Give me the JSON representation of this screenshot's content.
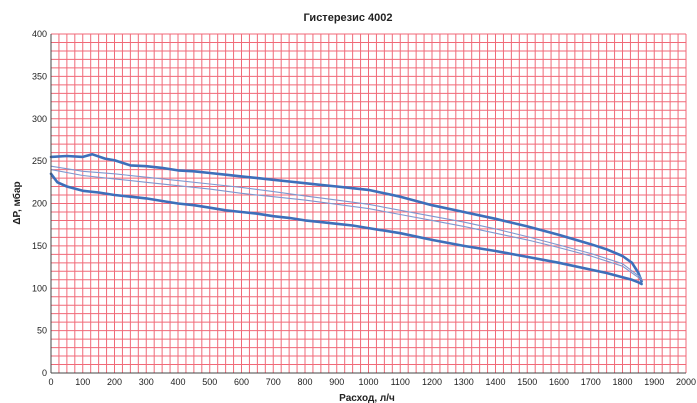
{
  "chart_data": {
    "type": "line",
    "title": "Гистерезис 4002",
    "xlabel": "Расход, л/ч",
    "ylabel": "ΔP, мбар",
    "xlim": [
      0,
      2000
    ],
    "ylim": [
      0,
      400
    ],
    "x_ticks": [
      "0",
      "100",
      "200",
      "300",
      "400",
      "500",
      "600",
      "700",
      "800",
      "900",
      "1000",
      "1100",
      "1200",
      "1300",
      "1400",
      "1500",
      "1600",
      "1700",
      "1800",
      "1900",
      "2000"
    ],
    "y_ticks": [
      "0",
      "50",
      "100",
      "150",
      "200",
      "250",
      "300",
      "350",
      "400"
    ],
    "grid": true,
    "legend": "none",
    "colors": {
      "thick": "#3d6fba",
      "thin": "#7e98d0",
      "grid": "#f06a78"
    },
    "series": [
      {
        "style": "thick",
        "x": [
          0,
          50,
          100,
          130,
          170,
          200,
          250,
          300,
          350,
          400,
          450,
          500,
          550,
          600,
          650,
          700,
          750,
          800,
          850,
          900,
          950,
          1000,
          1100,
          1200,
          1300,
          1400,
          1500,
          1600,
          1700,
          1750,
          1800,
          1830,
          1850,
          1860
        ],
        "y": [
          255,
          256,
          255,
          258,
          253,
          251,
          245,
          244,
          242,
          239,
          238,
          236,
          234,
          232,
          230,
          228,
          226,
          224,
          222,
          220,
          218,
          216,
          208,
          198,
          190,
          182,
          173,
          163,
          152,
          146,
          138,
          130,
          118,
          108
        ]
      },
      {
        "style": "thick",
        "x": [
          0,
          20,
          50,
          100,
          150,
          200,
          250,
          300,
          350,
          400,
          450,
          500,
          550,
          600,
          650,
          700,
          750,
          800,
          850,
          900,
          950,
          1000,
          1100,
          1200,
          1300,
          1400,
          1500,
          1600,
          1700,
          1750,
          1800,
          1830,
          1850,
          1860
        ],
        "y": [
          235,
          225,
          220,
          215,
          213,
          210,
          208,
          206,
          203,
          200,
          198,
          195,
          192,
          190,
          188,
          185,
          183,
          180,
          178,
          176,
          174,
          171,
          165,
          157,
          150,
          144,
          137,
          130,
          122,
          118,
          113,
          110,
          107,
          105
        ]
      },
      {
        "style": "thin",
        "x": [
          0,
          100,
          200,
          300,
          400,
          500,
          600,
          700,
          800,
          900,
          1000,
          1100,
          1200,
          1300,
          1400,
          1500,
          1600,
          1700,
          1800,
          1860
        ],
        "y": [
          240,
          233,
          229,
          225,
          221,
          217,
          212,
          208,
          204,
          199,
          194,
          187,
          180,
          173,
          165,
          157,
          148,
          138,
          126,
          110
        ]
      },
      {
        "style": "thin",
        "x": [
          0,
          100,
          200,
          300,
          400,
          500,
          600,
          700,
          800,
          900,
          1000,
          1100,
          1200,
          1300,
          1400,
          1500,
          1600,
          1700,
          1800,
          1860
        ],
        "y": [
          244,
          238,
          235,
          231,
          227,
          223,
          219,
          214,
          209,
          204,
          199,
          192,
          185,
          178,
          170,
          161,
          151,
          141,
          129,
          112
        ]
      }
    ]
  }
}
